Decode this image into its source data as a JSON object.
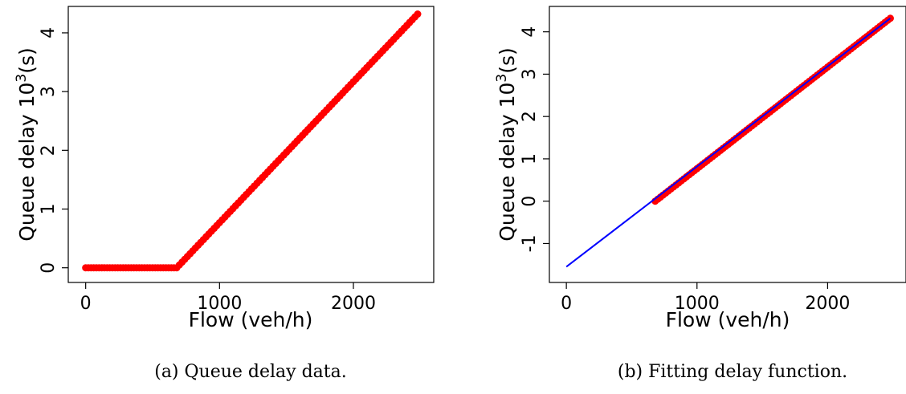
{
  "chart_data": [
    {
      "type": "scatter",
      "xlabel": "Flow (veh/h)",
      "ylabel": "Queue delay 10",
      "ylabel_exp": "3",
      "ylabel_unit": "(s)",
      "xlim": [
        -130,
        2600
      ],
      "ylim": [
        -0.25,
        4.45
      ],
      "xticks": [
        0,
        1000,
        2000
      ],
      "yticks": [
        0,
        1,
        2,
        3,
        4
      ],
      "caption": "(a) Queue delay data.",
      "grid": false,
      "series": [
        {
          "style": "points",
          "color": "#ff0000",
          "x_start": 0,
          "x_end": 2480,
          "x_step": 20,
          "breakpoint_x": 680,
          "slope": 0.0024,
          "intercept": -1.632
        }
      ]
    },
    {
      "type": "scatter",
      "xlabel": "Flow (veh/h)",
      "ylabel": "Queue delay 10",
      "ylabel_exp": "3",
      "ylabel_unit": "(s)",
      "xlim": [
        -130,
        2600
      ],
      "ylim": [
        -1.92,
        4.6
      ],
      "xticks": [
        0,
        1000,
        2000
      ],
      "yticks": [
        -1,
        0,
        1,
        2,
        3,
        4
      ],
      "caption": "(b) Fitting delay function.",
      "grid": false,
      "series": [
        {
          "style": "points",
          "color": "#ff0000",
          "x_start": 680,
          "x_end": 2480,
          "x_step": 20,
          "slope": 0.0024,
          "intercept": -1.632
        },
        {
          "style": "line",
          "color": "#0000ff",
          "x": [
            0,
            2480
          ],
          "y": [
            -1.55,
            4.32
          ]
        }
      ]
    }
  ]
}
